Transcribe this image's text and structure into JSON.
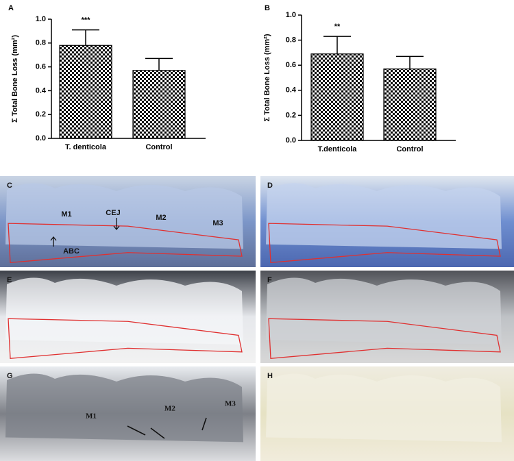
{
  "chart_data": [
    {
      "type": "bar",
      "panel_label": "A",
      "ylabel": "Σ Total Bone Loss (mm²)",
      "categories": [
        "T. denticola",
        "Control"
      ],
      "values": [
        0.78,
        0.57
      ],
      "errors": [
        0.13,
        0.1
      ],
      "annotations": [
        "***",
        null
      ],
      "ylim": [
        0,
        1.0
      ],
      "yticks": [
        {
          "value": 0,
          "label": "0.0"
        },
        0.2,
        0.4,
        0.6,
        0.8,
        {
          "value": 1.0,
          "label": "1.0"
        }
      ],
      "color": "checkerboard"
    },
    {
      "type": "bar",
      "panel_label": "B",
      "ylabel": "Σ Total Bone Loss (mm²)",
      "categories": [
        "T.denticola",
        "Control"
      ],
      "values": [
        0.69,
        0.57
      ],
      "errors": [
        0.14,
        0.1
      ],
      "annotations": [
        "**",
        null
      ],
      "ylim": [
        0,
        1.0
      ],
      "yticks": [
        {
          "value": 0,
          "label": "0.0"
        },
        0.2,
        0.4,
        0.6,
        0.8,
        {
          "value": 1.0,
          "label": "1.0"
        }
      ],
      "color": "checkerboard"
    }
  ],
  "photos": [
    {
      "label": "C",
      "annotations": [
        "M1",
        "CEJ",
        "M2",
        "M3",
        "ABC"
      ]
    },
    {
      "label": "D",
      "annotations": []
    },
    {
      "label": "E",
      "annotations": []
    },
    {
      "label": "F",
      "annotations": []
    },
    {
      "label": "G",
      "annotations": [
        "M1",
        "M2",
        "M3"
      ]
    },
    {
      "label": "H",
      "annotations": []
    }
  ]
}
